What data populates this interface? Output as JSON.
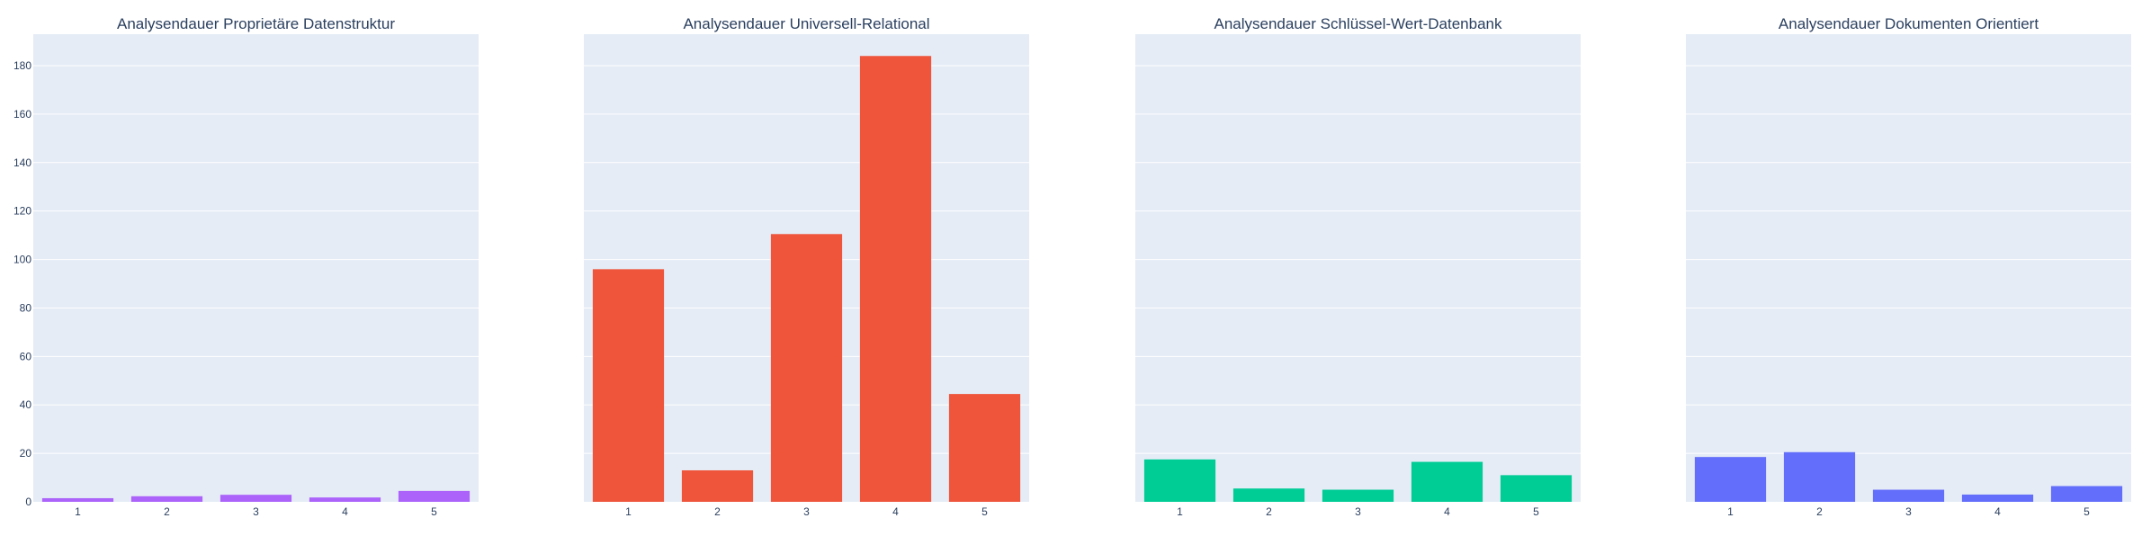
{
  "chart_data": [
    {
      "type": "bar",
      "title": "Analysendauer Proprietäre Datenstruktur",
      "categories": [
        "1",
        "2",
        "3",
        "4",
        "5"
      ],
      "values": [
        1.5,
        2.3,
        2.9,
        1.8,
        4.5
      ],
      "color": "#ab63fa",
      "ylim": [
        0,
        193
      ],
      "yticks": [
        0,
        20,
        40,
        60,
        80,
        100,
        120,
        140,
        160,
        180
      ],
      "show_yticks": true,
      "grid": true
    },
    {
      "type": "bar",
      "title": "Analysendauer Universell-Relational",
      "categories": [
        "1",
        "2",
        "3",
        "4",
        "5"
      ],
      "values": [
        96,
        13,
        110.5,
        184,
        44.5
      ],
      "color": "#ef553b",
      "ylim": [
        0,
        193
      ],
      "yticks": [
        0,
        20,
        40,
        60,
        80,
        100,
        120,
        140,
        160,
        180
      ],
      "show_yticks": false,
      "grid": true
    },
    {
      "type": "bar",
      "title": "Analysendauer Schlüssel-Wert-Datenbank",
      "categories": [
        "1",
        "2",
        "3",
        "4",
        "5"
      ],
      "values": [
        17.5,
        5.5,
        5,
        16.5,
        11
      ],
      "color": "#00cc96",
      "ylim": [
        0,
        193
      ],
      "yticks": [
        0,
        20,
        40,
        60,
        80,
        100,
        120,
        140,
        160,
        180
      ],
      "show_yticks": false,
      "grid": true
    },
    {
      "type": "bar",
      "title": "Analysendauer Dokumenten Orientiert",
      "categories": [
        "1",
        "2",
        "3",
        "4",
        "5"
      ],
      "values": [
        18.5,
        20.5,
        5,
        3,
        6.5
      ],
      "color": "#636efa",
      "ylim": [
        0,
        193
      ],
      "yticks": [
        0,
        20,
        40,
        60,
        80,
        100,
        120,
        140,
        160,
        180
      ],
      "show_yticks": false,
      "grid": true
    }
  ]
}
